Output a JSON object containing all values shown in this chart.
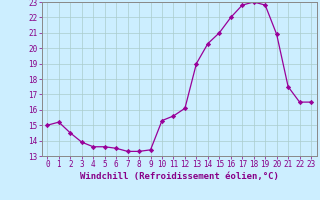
{
  "hours": [
    0,
    1,
    2,
    3,
    4,
    5,
    6,
    7,
    8,
    9,
    10,
    11,
    12,
    13,
    14,
    15,
    16,
    17,
    18,
    19,
    20,
    21,
    22,
    23
  ],
  "values": [
    15.0,
    15.2,
    14.5,
    13.9,
    13.6,
    13.6,
    13.5,
    13.3,
    13.3,
    13.4,
    15.3,
    15.6,
    16.1,
    19.0,
    20.3,
    21.0,
    22.0,
    22.8,
    23.0,
    22.8,
    20.9,
    17.5,
    16.5,
    16.5
  ],
  "line_color": "#990099",
  "marker": "D",
  "marker_size": 2.2,
  "bg_color": "#cceeff",
  "grid_color": "#aacccc",
  "xlabel": "Windchill (Refroidissement éolien,°C)",
  "ylim": [
    13,
    23
  ],
  "xlim_min": -0.5,
  "xlim_max": 23.5,
  "yticks": [
    13,
    14,
    15,
    16,
    17,
    18,
    19,
    20,
    21,
    22,
    23
  ],
  "xticks": [
    0,
    1,
    2,
    3,
    4,
    5,
    6,
    7,
    8,
    9,
    10,
    11,
    12,
    13,
    14,
    15,
    16,
    17,
    18,
    19,
    20,
    21,
    22,
    23
  ],
  "tick_fontsize": 5.5,
  "xlabel_fontsize": 6.5,
  "line_width": 0.9
}
